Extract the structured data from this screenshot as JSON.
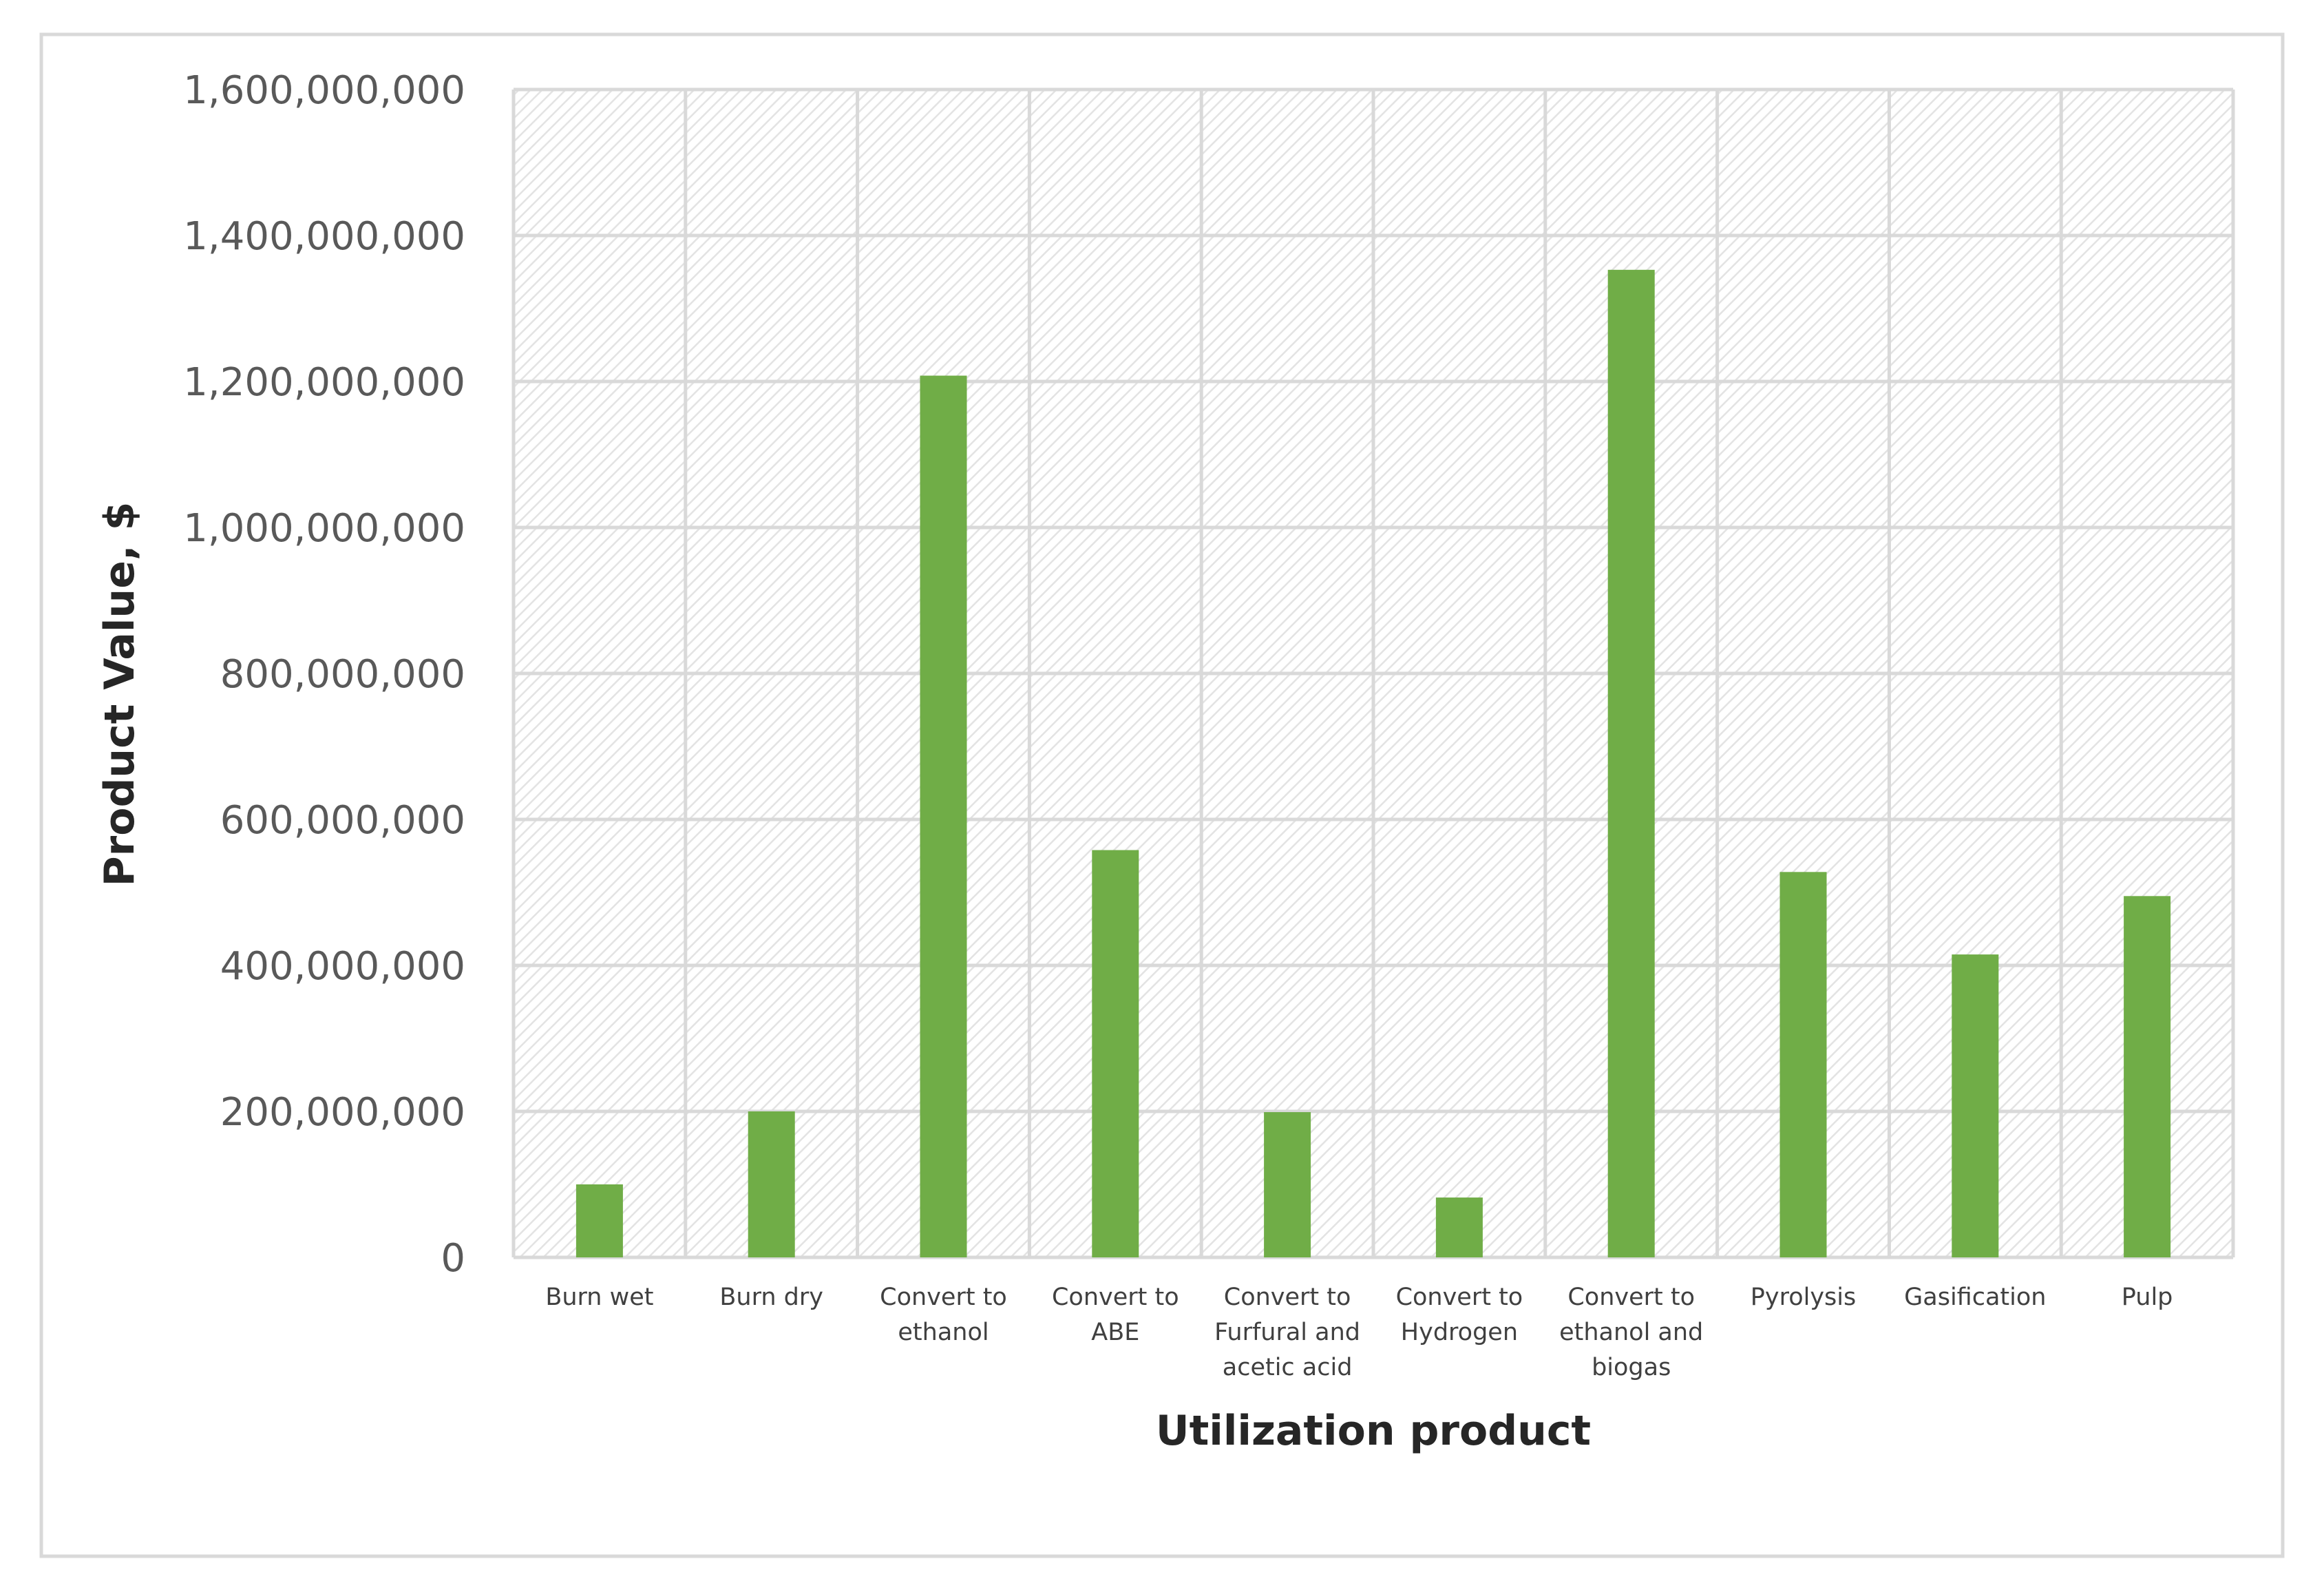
{
  "chart_data": {
    "type": "bar",
    "title": "",
    "xlabel": "Utilization product",
    "ylabel": "Product Value, $",
    "ylim": [
      0,
      1600000000
    ],
    "y_tick_step": 200000000,
    "y_tick_labels": [
      "0",
      "200,000,000",
      "400,000,000",
      "600,000,000",
      "800,000,000",
      "1,000,000,000",
      "1,200,000,000",
      "1,400,000,000",
      "1,600,000,000"
    ],
    "categories": [
      [
        "Burn wet"
      ],
      [
        "Burn dry"
      ],
      [
        "Convert to",
        "ethanol"
      ],
      [
        "Convert to",
        "ABE"
      ],
      [
        "Convert to",
        "Furfural and",
        "acetic acid"
      ],
      [
        "Convert to",
        "Hydrogen"
      ],
      [
        "Convert to",
        "ethanol and",
        "biogas"
      ],
      [
        "Pyrolysis"
      ],
      [
        "Gasification"
      ],
      [
        "Pulp"
      ]
    ],
    "values": [
      100000000,
      200000000,
      1208000000,
      558000000,
      199000000,
      82000000,
      1353000000,
      528000000,
      415000000,
      495000000
    ],
    "bar_color": "#70ad47",
    "grid": true,
    "legend": "none",
    "plot_background": "hatched"
  }
}
